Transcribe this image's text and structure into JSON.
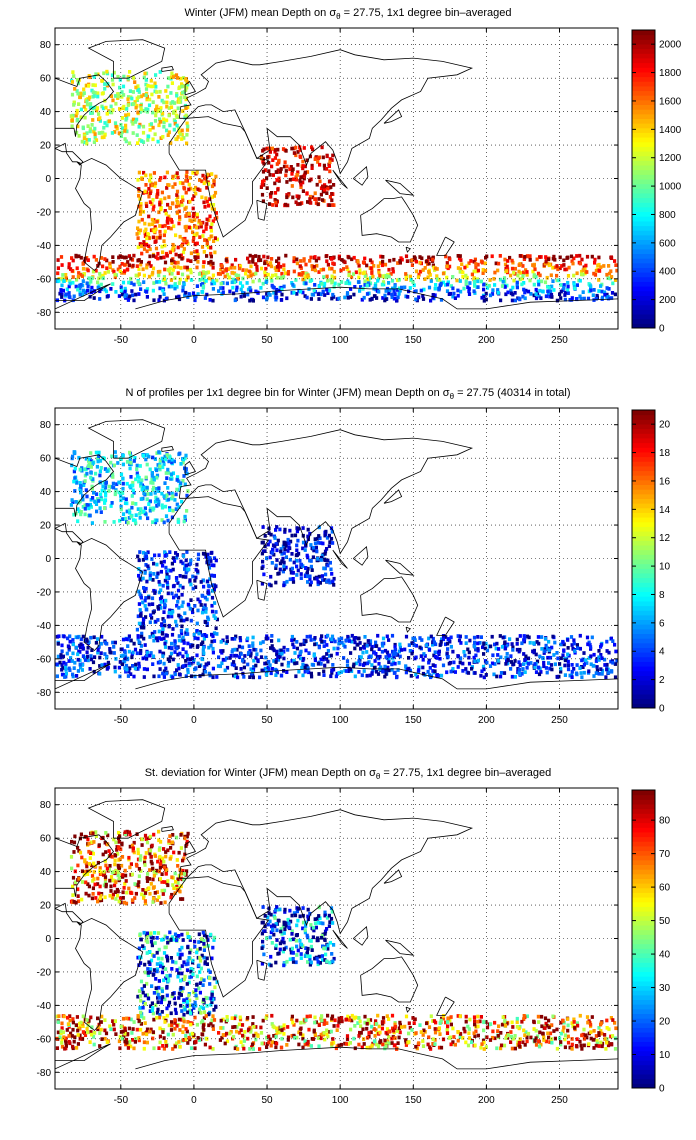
{
  "chart_data": [
    {
      "type": "heatmap",
      "title_parts": [
        "Winter (JFM) mean Depth on σ",
        "θ",
        " = 27.75, 1x1 degree bin–averaged"
      ],
      "x_ticks": [
        -50,
        0,
        50,
        100,
        150,
        200,
        250
      ],
      "y_ticks": [
        80,
        60,
        40,
        20,
        0,
        -20,
        -40,
        -60,
        -80
      ],
      "xlim": [
        -95,
        290
      ],
      "ylim": [
        -90,
        90
      ],
      "grid": true,
      "colorbar": {
        "range": [
          0,
          2100
        ],
        "ticks": [
          0,
          200,
          400,
          600,
          800,
          1000,
          1200,
          1400,
          1600,
          1800,
          2000
        ]
      },
      "regions": [
        {
          "name": "North Atlantic",
          "lon": [
            -85,
            -5
          ],
          "lat": [
            22,
            65
          ],
          "value": 1200
        },
        {
          "name": "South Atlantic",
          "lon": [
            -40,
            15
          ],
          "lat": [
            -45,
            5
          ],
          "value": 1600
        },
        {
          "name": "Southern Ocean band",
          "lon": [
            -95,
            290
          ],
          "lat": [
            -60,
            -45
          ],
          "value": 1800
        },
        {
          "name": "Southern Ocean south",
          "lon": [
            -95,
            290
          ],
          "lat": [
            -72,
            -60
          ],
          "value": 300
        },
        {
          "name": "Indian Ocean",
          "lon": [
            45,
            95
          ],
          "lat": [
            -15,
            20
          ],
          "value": 1950
        }
      ]
    },
    {
      "type": "heatmap",
      "title_parts": [
        "N of profiles per 1x1 degree bin for Winter (JFM) mean Depth on σ",
        "θ",
        " = 27.75 (40314 in total)"
      ],
      "x_ticks": [
        -50,
        0,
        50,
        100,
        150,
        200,
        250
      ],
      "y_ticks": [
        80,
        60,
        40,
        20,
        0,
        -20,
        -40,
        -60,
        -80
      ],
      "xlim": [
        -95,
        290
      ],
      "ylim": [
        -90,
        90
      ],
      "grid": true,
      "colorbar": {
        "range": [
          0,
          21
        ],
        "ticks": [
          0,
          2,
          4,
          6,
          8,
          10,
          12,
          14,
          16,
          18,
          20
        ]
      },
      "regions": [
        {
          "name": "North Atlantic",
          "lon": [
            -85,
            -5
          ],
          "lat": [
            22,
            65
          ],
          "value": 7
        },
        {
          "name": "South Atlantic",
          "lon": [
            -40,
            15
          ],
          "lat": [
            -45,
            5
          ],
          "value": 3
        },
        {
          "name": "Southern Ocean band",
          "lon": [
            -95,
            290
          ],
          "lat": [
            -70,
            -45
          ],
          "value": 3
        },
        {
          "name": "Indian Ocean",
          "lon": [
            45,
            95
          ],
          "lat": [
            -15,
            20
          ],
          "value": 2
        }
      ]
    },
    {
      "type": "heatmap",
      "title_parts": [
        "St. deviation for Winter (JFM) mean Depth on σ",
        "θ",
        " = 27.75, 1x1 degree bin–averaged"
      ],
      "x_ticks": [
        -50,
        0,
        50,
        100,
        150,
        200,
        250
      ],
      "y_ticks": [
        80,
        60,
        40,
        20,
        0,
        -20,
        -40,
        -60,
        -80
      ],
      "xlim": [
        -95,
        290
      ],
      "ylim": [
        -90,
        90
      ],
      "grid": true,
      "colorbar": {
        "range": [
          0,
          89
        ],
        "ticks": [
          0,
          10,
          20,
          30,
          40,
          50,
          60,
          70,
          80
        ]
      },
      "regions": [
        {
          "name": "North Atlantic",
          "lon": [
            -85,
            -5
          ],
          "lat": [
            22,
            65
          ],
          "value": 75
        },
        {
          "name": "South Atlantic",
          "lon": [
            -40,
            15
          ],
          "lat": [
            -45,
            5
          ],
          "value": 20
        },
        {
          "name": "Southern Ocean band",
          "lon": [
            -95,
            290
          ],
          "lat": [
            -65,
            -45
          ],
          "value": 70
        },
        {
          "name": "Indian Ocean",
          "lon": [
            45,
            95
          ],
          "lat": [
            -15,
            20
          ],
          "value": 15
        }
      ]
    }
  ]
}
